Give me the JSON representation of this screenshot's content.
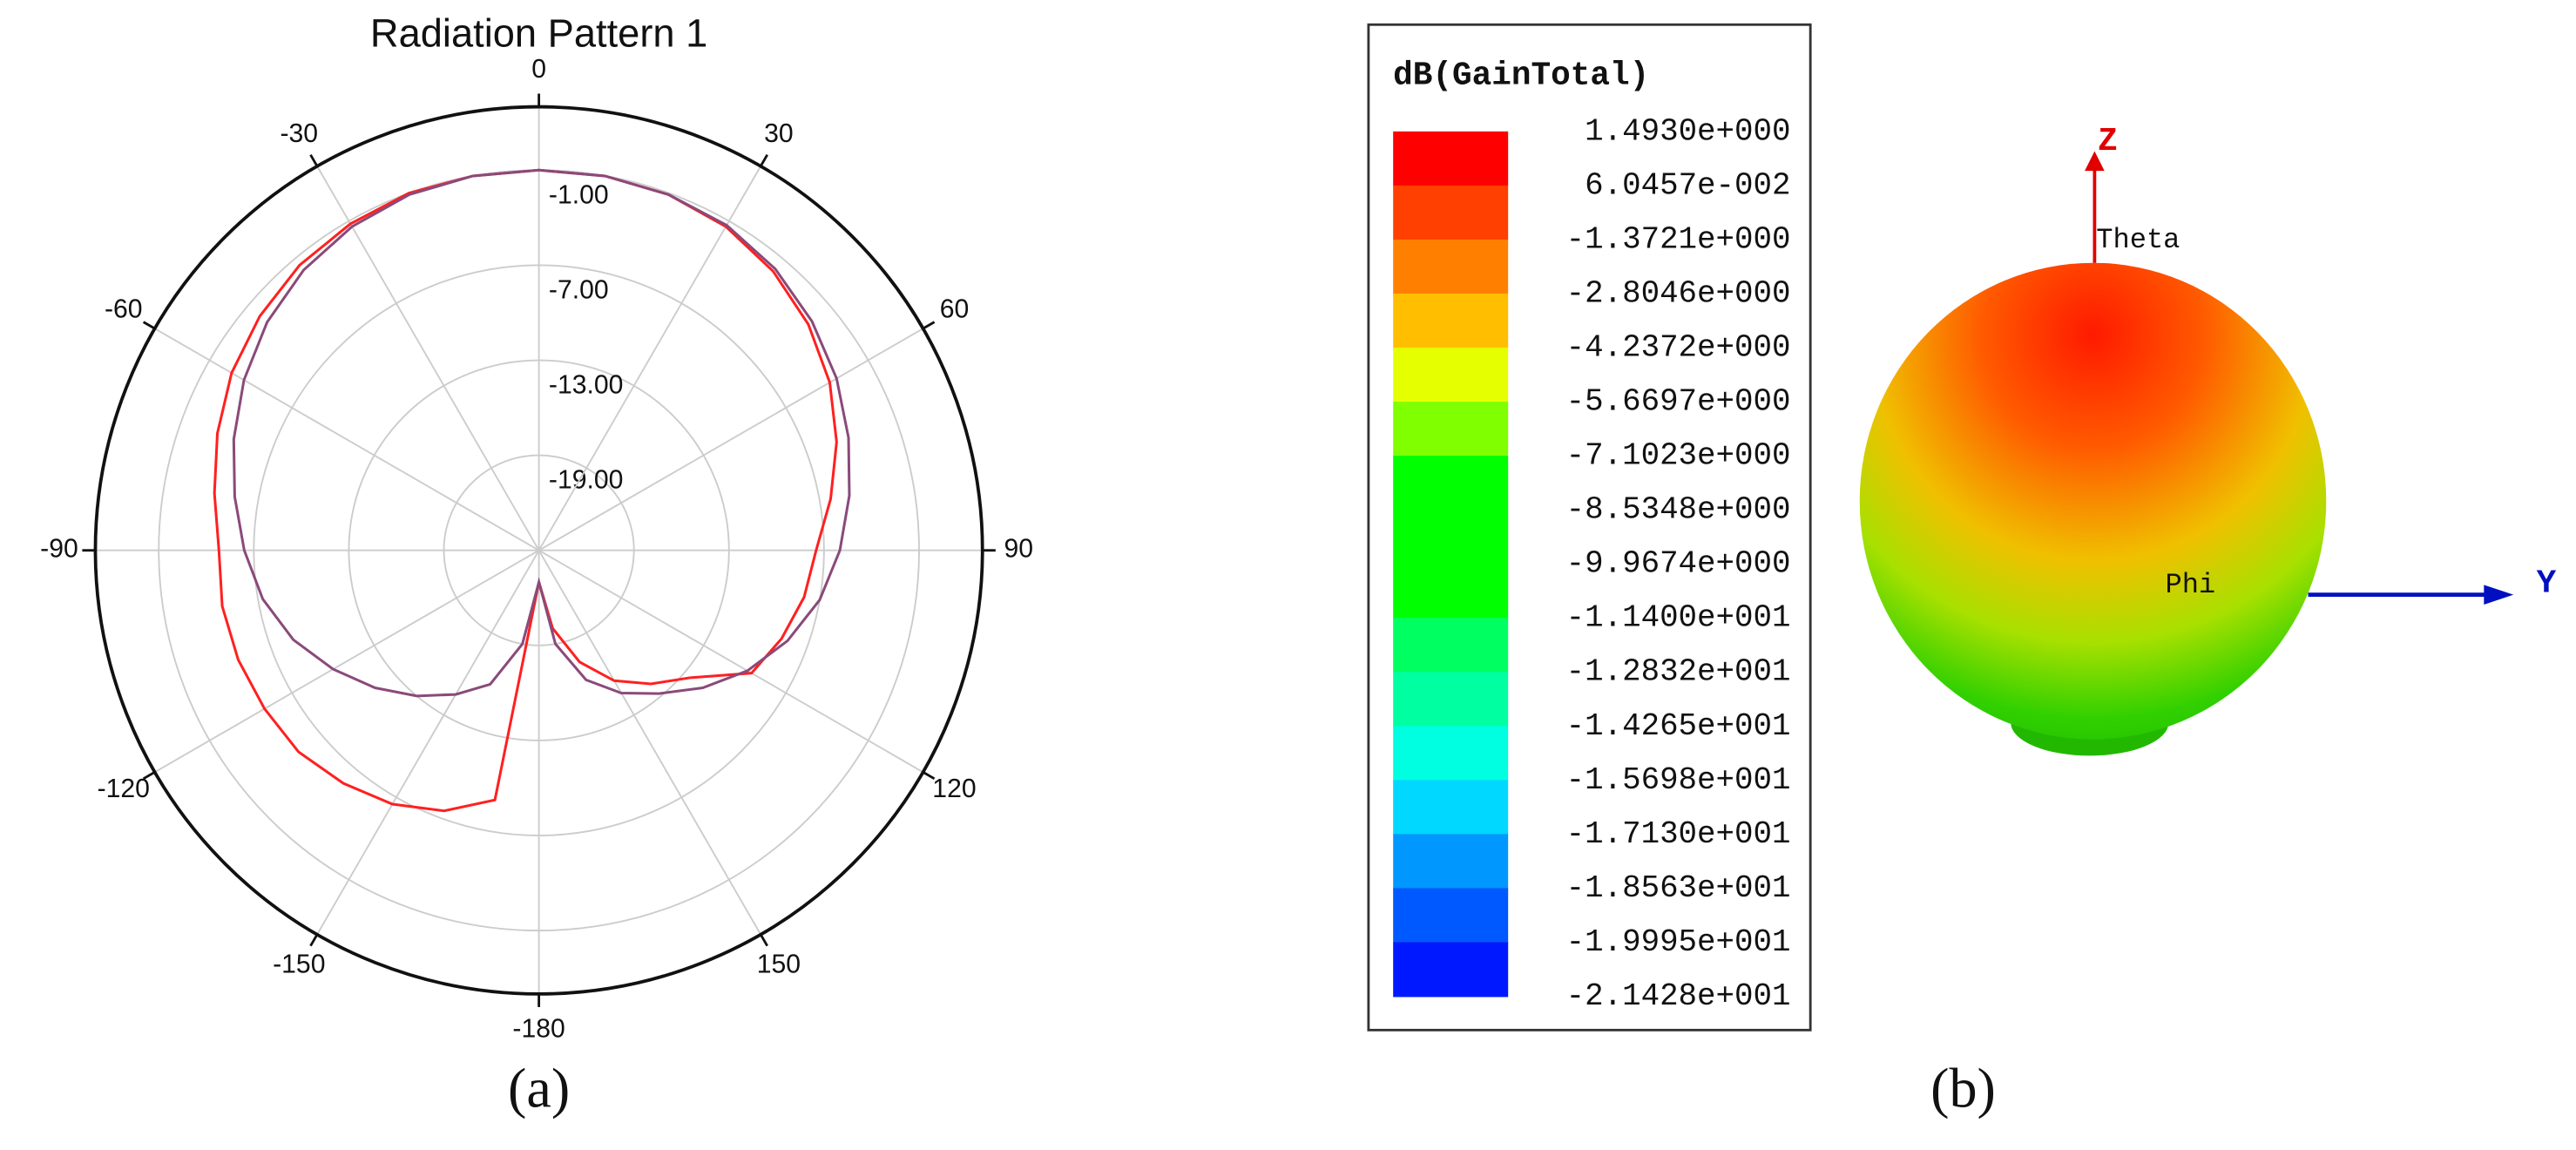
{
  "chart_data": [
    {
      "type": "polar",
      "title": "Radiation Pattern 1",
      "panel_label": "(a)",
      "x": [
        -180,
        -170,
        -160,
        -150,
        -140,
        -130,
        -120,
        -110,
        -100,
        -90,
        -80,
        -70,
        -60,
        -50,
        -40,
        -30,
        -20,
        -10,
        0,
        10,
        20,
        30,
        40,
        50,
        60,
        70,
        80,
        90,
        100,
        110,
        120,
        130,
        140,
        150,
        160,
        170
      ],
      "series": [
        {
          "color": "#ff2020",
          "values": [
            -23,
            -9,
            -7.5,
            -6.5,
            -5.8,
            -5.2,
            -5,
            -4.8,
            -4.7,
            -4.8,
            -4.2,
            -3.4,
            -2.6,
            -2,
            -1.5,
            -1.2,
            -1,
            -1,
            -1,
            -1,
            -1.1,
            -1.4,
            -2,
            -2.8,
            -3.8,
            -5,
            -6.3,
            -7.5,
            -8,
            -8.7,
            -9.5,
            -12.5,
            -14,
            -15.5,
            -17.5,
            -20
          ]
        },
        {
          "color": "#8a4a7a",
          "values": [
            -23,
            -19,
            -16,
            -14.5,
            -13,
            -11.5,
            -10,
            -8.5,
            -7.3,
            -6.4,
            -5.5,
            -4.5,
            -3.5,
            -2.6,
            -1.9,
            -1.4,
            -1.1,
            -1,
            -1,
            -1,
            -1.1,
            -1.3,
            -1.8,
            -2.5,
            -3.3,
            -4.2,
            -5.1,
            -6,
            -7,
            -8.3,
            -9.8,
            -11.5,
            -13.2,
            -14.6,
            -16.3,
            -19
          ]
        }
      ],
      "thetalim": [
        -180,
        180
      ],
      "xticks": [
        -180,
        -150,
        -120,
        -90,
        -60,
        -30,
        0,
        30,
        60,
        90,
        120,
        150
      ],
      "ylim": [
        -25,
        3
      ],
      "yticks": [
        {
          "value": -1,
          "label": "-1.00"
        },
        {
          "value": -7,
          "label": "-7.00"
        },
        {
          "value": -13,
          "label": "-13.00"
        },
        {
          "value": -19,
          "label": "-19.00"
        }
      ],
      "grid": true
    },
    {
      "type": "surface3d",
      "panel_label": "(b)",
      "colorbar_title": "dB(GainTotal)",
      "axis_labels": {
        "z": "Z",
        "y": "Y",
        "theta": "Theta",
        "phi": "Phi"
      },
      "colorbar_ticks": [
        {
          "value": 1.493,
          "label": "1.4930e+000"
        },
        {
          "value": 0.060457,
          "label": "6.0457e-002"
        },
        {
          "value": -1.3721,
          "label": "-1.3721e+000"
        },
        {
          "value": -2.8046,
          "label": "-2.8046e+000"
        },
        {
          "value": -4.2372,
          "label": "-4.2372e+000"
        },
        {
          "value": -5.6697,
          "label": "-5.6697e+000"
        },
        {
          "value": -7.1023,
          "label": "-7.1023e+000"
        },
        {
          "value": -8.5348,
          "label": "-8.5348e+000"
        },
        {
          "value": -9.9674,
          "label": "-9.9674e+000"
        },
        {
          "value": -11.4,
          "label": "-1.1400e+001"
        },
        {
          "value": -12.832,
          "label": "-1.2832e+001"
        },
        {
          "value": -14.265,
          "label": "-1.4265e+001"
        },
        {
          "value": -15.698,
          "label": "-1.5698e+001"
        },
        {
          "value": -17.13,
          "label": "-1.7130e+001"
        },
        {
          "value": -18.563,
          "label": "-1.8563e+001"
        },
        {
          "value": -19.995,
          "label": "-1.9995e+001"
        },
        {
          "value": -21.428,
          "label": "-2.1428e+001"
        }
      ],
      "colors": [
        "#ff0000",
        "#ff4000",
        "#ff8000",
        "#ffbf00",
        "#e6ff00",
        "#80ff00",
        "#00ff00",
        "#00ff00",
        "#00ff00",
        "#00ff60",
        "#00ffa0",
        "#00ffe0",
        "#00d8ff",
        "#0098ff",
        "#0058ff",
        "#0018ff"
      ]
    }
  ]
}
